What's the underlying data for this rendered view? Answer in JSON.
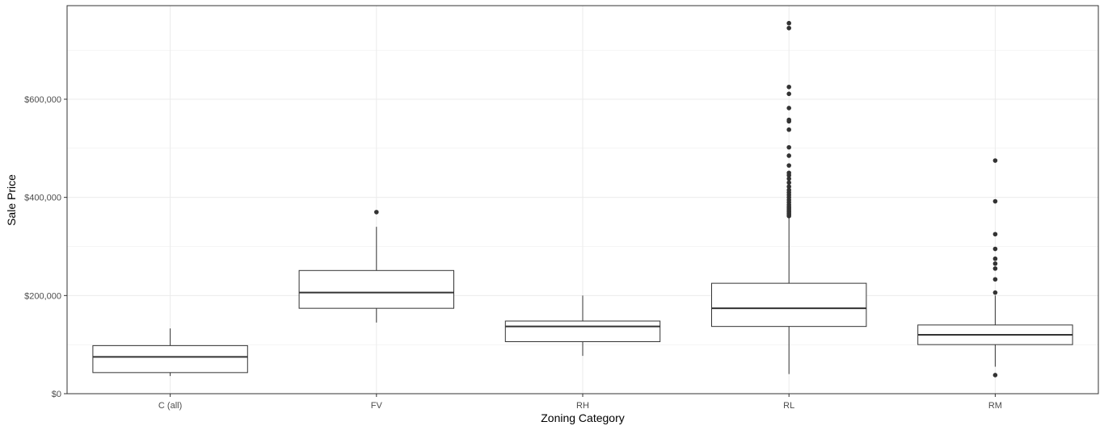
{
  "chart_data": {
    "type": "boxplot",
    "title": "",
    "xlabel": "Zoning Category",
    "ylabel": "Sale Price",
    "categories": [
      "C (all)",
      "FV",
      "RH",
      "RL",
      "RM"
    ],
    "ylim": [
      0,
      790000
    ],
    "yticks": [
      0,
      200000,
      400000,
      600000
    ],
    "ytick_labels": [
      "$0",
      "$200,000",
      "$400,000",
      "$600,000"
    ],
    "grid": true,
    "boxes": [
      {
        "category": "C (all)",
        "whisker_low": 36000,
        "q1": 43000,
        "median": 75000,
        "q3": 98000,
        "whisker_high": 133000,
        "outliers": []
      },
      {
        "category": "FV",
        "whisker_low": 145000,
        "q1": 174000,
        "median": 206000,
        "q3": 251000,
        "whisker_high": 340000,
        "outliers": [
          370000
        ]
      },
      {
        "category": "RH",
        "whisker_low": 77000,
        "q1": 106000,
        "median": 137000,
        "q3": 148000,
        "whisker_high": 200000,
        "outliers": []
      },
      {
        "category": "RL",
        "whisker_low": 40000,
        "q1": 137000,
        "median": 174000,
        "q3": 225000,
        "whisker_high": 358000,
        "outliers": [
          362000,
          365000,
          367000,
          370000,
          372000,
          375000,
          378000,
          381000,
          385000,
          390000,
          395000,
          400000,
          405000,
          410000,
          415000,
          422000,
          430000,
          438000,
          445000,
          450000,
          465000,
          485000,
          502000,
          538000,
          555000,
          558000,
          582000,
          611000,
          625000,
          745000,
          755000
        ]
      },
      {
        "category": "RM",
        "whisker_low": 55000,
        "q1": 100000,
        "median": 120000,
        "q3": 140000,
        "whisker_high": 200000,
        "outliers": [
          37900,
          206000,
          233000,
          255000,
          265000,
          275000,
          295000,
          325000,
          392000,
          475000
        ]
      }
    ],
    "colors": {
      "box_stroke": "#333333",
      "box_fill": "#ffffff",
      "grid": "#ebebeb",
      "panel_border": "#333333",
      "outlier": "#333333"
    }
  }
}
